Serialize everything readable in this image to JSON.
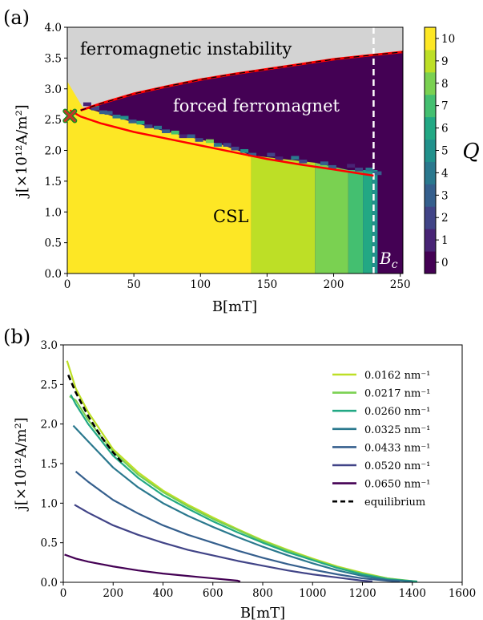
{
  "figure": {
    "panel_a_label": "(a)",
    "panel_b_label": "(b)"
  },
  "colors": {
    "Q": [
      "#440154",
      "#482475",
      "#414487",
      "#355f8d",
      "#2a788e",
      "#21918c",
      "#22a884",
      "#44bf70",
      "#7ad151",
      "#bddf26",
      "#fde725"
    ],
    "instability": "#d3d3d3",
    "boundary": "#ff0000",
    "bc_line": "#ffffff",
    "cross": "#c0392b",
    "cross_outline": "#1e8c1e"
  },
  "chart_data": [
    {
      "type": "heatmap",
      "panel": "(a)",
      "xlabel": "B[mT]",
      "ylabel": "j[×10¹²A/m²]",
      "xlim": [
        0,
        252
      ],
      "ylim": [
        0,
        4.0
      ],
      "xticks": [
        "0",
        "50",
        "100",
        "150",
        "200",
        "250"
      ],
      "xtick_values": [
        0,
        50,
        100,
        150,
        200,
        250
      ],
      "yticks": [
        "0.0",
        "0.5",
        "1.0",
        "1.5",
        "2.0",
        "2.5",
        "3.0",
        "3.5",
        "4.0"
      ],
      "ytick_values": [
        0,
        0.5,
        1.0,
        1.5,
        2.0,
        2.5,
        3.0,
        3.5,
        4.0
      ],
      "colorbar_label": "Q",
      "colorbar_ticks": [
        "0",
        "1",
        "2",
        "3",
        "4",
        "5",
        "6",
        "7",
        "8",
        "9",
        "10"
      ],
      "region_labels": {
        "instability": "ferromagnetic instability",
        "forced": "forced ferromagnet",
        "csl": "CSL",
        "bc": "B",
        "bc_sub": "c"
      },
      "Bc": 230,
      "csl_segments": [
        {
          "x0": 0,
          "x1": 138,
          "q": 10
        },
        {
          "x0": 138,
          "x1": 186,
          "q": 9
        },
        {
          "x0": 186,
          "x1": 211,
          "q": 8
        },
        {
          "x0": 211,
          "x1": 222,
          "q": 7
        },
        {
          "x0": 222,
          "x1": 229,
          "q": 6
        },
        {
          "x0": 229,
          "x1": 233,
          "q": 5
        }
      ],
      "boundary_lower": [
        [
          2,
          2.65
        ],
        [
          10,
          2.55
        ],
        [
          25,
          2.44
        ],
        [
          50,
          2.3
        ],
        [
          75,
          2.19
        ],
        [
          100,
          2.08
        ],
        [
          125,
          1.97
        ],
        [
          150,
          1.86
        ],
        [
          175,
          1.77
        ],
        [
          200,
          1.69
        ],
        [
          215,
          1.64
        ],
        [
          230,
          1.59
        ]
      ],
      "boundary_upper": [
        [
          10,
          2.65
        ],
        [
          25,
          2.76
        ],
        [
          50,
          2.92
        ],
        [
          75,
          3.04
        ],
        [
          100,
          3.15
        ],
        [
          125,
          3.24
        ],
        [
          150,
          3.32
        ],
        [
          175,
          3.4
        ],
        [
          200,
          3.48
        ],
        [
          225,
          3.54
        ],
        [
          252,
          3.6
        ]
      ],
      "yellow_top": [
        [
          0,
          3.12
        ],
        [
          7,
          3.12
        ],
        [
          7,
          2.73
        ],
        [
          15,
          2.68
        ],
        [
          35,
          2.55
        ],
        [
          55,
          2.42
        ],
        [
          75,
          2.3
        ],
        [
          95,
          2.2
        ],
        [
          115,
          2.1
        ],
        [
          138,
          1.92
        ],
        [
          186,
          1.8
        ],
        [
          211,
          1.68
        ],
        [
          233,
          1.68
        ]
      ],
      "stair_cells": [
        [
          12,
          2.72,
          1,
          6
        ],
        [
          18,
          2.65,
          2,
          3
        ],
        [
          28,
          2.58,
          3,
          4
        ],
        [
          40,
          2.5,
          5,
          3
        ],
        [
          52,
          2.42,
          6,
          2
        ],
        [
          65,
          2.34,
          4,
          3
        ],
        [
          78,
          2.26,
          7,
          1
        ],
        [
          90,
          2.2,
          3,
          2
        ],
        [
          104,
          2.12,
          8,
          4
        ],
        [
          117,
          2.06,
          2,
          2
        ],
        [
          130,
          1.96,
          5,
          3
        ],
        [
          150,
          1.9,
          2,
          1
        ],
        [
          168,
          1.85,
          4,
          2
        ],
        [
          190,
          1.76,
          3,
          3
        ],
        [
          210,
          1.72,
          1,
          2
        ],
        [
          224,
          1.66,
          4,
          3
        ]
      ],
      "cross": [
        2,
        2.56
      ]
    },
    {
      "type": "line",
      "panel": "(b)",
      "xlabel": "B[mT]",
      "ylabel": "j[×10¹²A/m²]",
      "xlim": [
        0,
        1600
      ],
      "ylim": [
        0,
        3.0
      ],
      "xticks": [
        "0",
        "200",
        "400",
        "600",
        "800",
        "1000",
        "1200",
        "1400",
        "1600"
      ],
      "xtick_values": [
        0,
        200,
        400,
        600,
        800,
        1000,
        1200,
        1400,
        1600
      ],
      "yticks": [
        "0.0",
        "0.5",
        "1.0",
        "1.5",
        "2.0",
        "2.5",
        "3.0"
      ],
      "ytick_values": [
        0,
        0.5,
        1.0,
        1.5,
        2.0,
        2.5,
        3.0
      ],
      "legend_position": "top-right",
      "series": [
        {
          "name": "0.0162 nm⁻¹",
          "color": "#bddf26",
          "x": [
            15,
            50,
            100,
            200,
            300,
            400,
            500,
            600,
            700,
            800,
            900,
            1000,
            1100,
            1200,
            1300,
            1400
          ],
          "y": [
            2.8,
            2.45,
            2.15,
            1.68,
            1.39,
            1.16,
            0.98,
            0.82,
            0.67,
            0.53,
            0.41,
            0.3,
            0.2,
            0.12,
            0.05,
            0.01
          ]
        },
        {
          "name": "0.0217 nm⁻¹",
          "color": "#7ad151",
          "x": [
            25,
            50,
            100,
            200,
            300,
            400,
            500,
            600,
            700,
            800,
            900,
            1000,
            1100,
            1200,
            1300,
            1415
          ],
          "y": [
            2.35,
            2.3,
            2.05,
            1.65,
            1.36,
            1.14,
            0.96,
            0.8,
            0.66,
            0.52,
            0.4,
            0.29,
            0.19,
            0.11,
            0.05,
            0.01
          ]
        },
        {
          "name": "0.0260 nm⁻¹",
          "color": "#22a884",
          "x": [
            30,
            50,
            100,
            200,
            300,
            400,
            500,
            600,
            700,
            800,
            900,
            1000,
            1100,
            1200,
            1300,
            1420
          ],
          "y": [
            2.37,
            2.25,
            2.0,
            1.6,
            1.32,
            1.1,
            0.93,
            0.77,
            0.63,
            0.5,
            0.38,
            0.28,
            0.18,
            0.1,
            0.04,
            0.01
          ]
        },
        {
          "name": "0.0325 nm⁻¹",
          "color": "#2a788e",
          "x": [
            40,
            100,
            200,
            300,
            400,
            500,
            600,
            700,
            800,
            900,
            1000,
            1100,
            1200,
            1300,
            1400
          ],
          "y": [
            1.98,
            1.78,
            1.45,
            1.2,
            1.0,
            0.84,
            0.7,
            0.57,
            0.45,
            0.34,
            0.24,
            0.15,
            0.08,
            0.03,
            0.01
          ]
        },
        {
          "name": "0.0433 nm⁻¹",
          "color": "#355f8d",
          "x": [
            50,
            100,
            200,
            300,
            400,
            500,
            600,
            700,
            800,
            900,
            1000,
            1100,
            1200,
            1300,
            1350
          ],
          "y": [
            1.4,
            1.27,
            1.04,
            0.87,
            0.72,
            0.6,
            0.5,
            0.4,
            0.31,
            0.23,
            0.16,
            0.1,
            0.05,
            0.02,
            0.01
          ]
        },
        {
          "name": "0.0520 nm⁻¹",
          "color": "#414487",
          "x": [
            45,
            100,
            200,
            300,
            400,
            500,
            600,
            700,
            800,
            900,
            1000,
            1100,
            1200,
            1240
          ],
          "y": [
            0.98,
            0.88,
            0.72,
            0.6,
            0.5,
            0.41,
            0.34,
            0.27,
            0.21,
            0.15,
            0.1,
            0.06,
            0.02,
            0.01
          ]
        },
        {
          "name": "0.0650 nm⁻¹",
          "color": "#440154",
          "x": [
            5,
            50,
            100,
            200,
            300,
            400,
            500,
            600,
            700,
            710
          ],
          "y": [
            0.35,
            0.3,
            0.26,
            0.2,
            0.15,
            0.11,
            0.08,
            0.05,
            0.02,
            0.01
          ]
        },
        {
          "name": "equilibrium",
          "color": "#000000",
          "dashed": true,
          "x": [
            20,
            50,
            100,
            150,
            200,
            240
          ],
          "y": [
            2.62,
            2.4,
            2.1,
            1.85,
            1.64,
            1.5
          ]
        }
      ]
    }
  ]
}
